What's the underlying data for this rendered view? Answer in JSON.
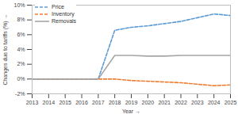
{
  "chart_data": {
    "type": "line",
    "x_label": "Year",
    "y_label": "Changes due to tariffs (%)",
    "x": [
      2013,
      2014,
      2015,
      2016,
      2017,
      2018,
      2019,
      2020,
      2021,
      2022,
      2023,
      2024,
      2025
    ],
    "xlim": [
      2013,
      2025
    ],
    "xticks": [
      2013,
      2014,
      2015,
      2016,
      2017,
      2018,
      2019,
      2020,
      2021,
      2022,
      2023,
      2024,
      2025
    ],
    "ylim": [
      -2,
      10
    ],
    "yticks": [
      {
        "value": -2,
        "label": "-2%"
      },
      {
        "value": 0,
        "label": "0%"
      },
      {
        "value": 2,
        "label": "2%"
      },
      {
        "value": 4,
        "label": "4%"
      },
      {
        "value": 6,
        "label": "6%"
      },
      {
        "value": 8,
        "label": "8%"
      },
      {
        "value": 10,
        "label": "10%"
      }
    ],
    "grid": false,
    "legend": "top-left",
    "series": [
      {
        "name": "Price",
        "color": "#5b9bd5",
        "line_style": "dashed",
        "values": [
          0,
          0,
          0,
          0,
          0,
          6.6,
          7.0,
          7.2,
          7.5,
          7.8,
          8.3,
          8.8,
          8.6
        ]
      },
      {
        "name": "Inventory",
        "color": "#ed7d31",
        "line_style": "dashed",
        "values": [
          0,
          0,
          0,
          0,
          0,
          0,
          -0.2,
          -0.3,
          -0.4,
          -0.5,
          -0.7,
          -0.9,
          -0.8
        ]
      },
      {
        "name": "Removals",
        "color": "#a5a5a5",
        "line_style": "solid",
        "values": [
          0,
          0,
          0,
          0,
          0,
          3.2,
          3.2,
          3.1,
          3.1,
          3.2,
          3.2,
          3.2,
          3.2
        ]
      }
    ]
  }
}
